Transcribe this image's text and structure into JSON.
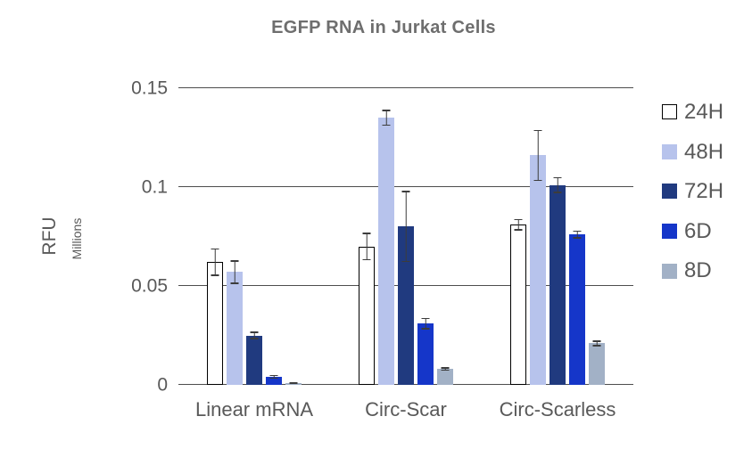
{
  "chart_data": {
    "type": "bar",
    "title": "EGFP RNA in Jurkat Cells",
    "ylabel": "RFU",
    "ylabel_units": "Millions",
    "xlabel": "",
    "ylim": [
      0,
      0.15
    ],
    "yticks": [
      0,
      0.05,
      0.1,
      0.15
    ],
    "ytick_labels": [
      "0",
      "0.05",
      "0.1",
      "0.15"
    ],
    "grid": true,
    "legend_position": "right",
    "categories": [
      "Linear mRNA",
      "Circ-Scar",
      "Circ-Scarless"
    ],
    "series": [
      {
        "name": "24H",
        "color": "#ffffff",
        "border": "#000000",
        "values": [
          0.062,
          0.07,
          0.081
        ],
        "errors": [
          0.007,
          0.007,
          0.003
        ]
      },
      {
        "name": "48H",
        "color": "#b7c3ec",
        "values": [
          0.057,
          0.135,
          0.116
        ],
        "errors": [
          0.006,
          0.004,
          0.013
        ]
      },
      {
        "name": "72H",
        "color": "#203a7f",
        "values": [
          0.025,
          0.08,
          0.101
        ],
        "errors": [
          0.002,
          0.018,
          0.004
        ]
      },
      {
        "name": "6D",
        "color": "#1536c9",
        "values": [
          0.004,
          0.031,
          0.076
        ],
        "errors": [
          0.001,
          0.003,
          0.002
        ]
      },
      {
        "name": "8D",
        "color": "#a2b1c6",
        "values": [
          0.001,
          0.008,
          0.021
        ],
        "errors": [
          0.0005,
          0.001,
          0.0015
        ]
      }
    ],
    "colors": {
      "grid": "#4d4d4d",
      "text": "#595959",
      "title": "#6e6e6e",
      "error_bar": "#3c3c3c"
    }
  }
}
